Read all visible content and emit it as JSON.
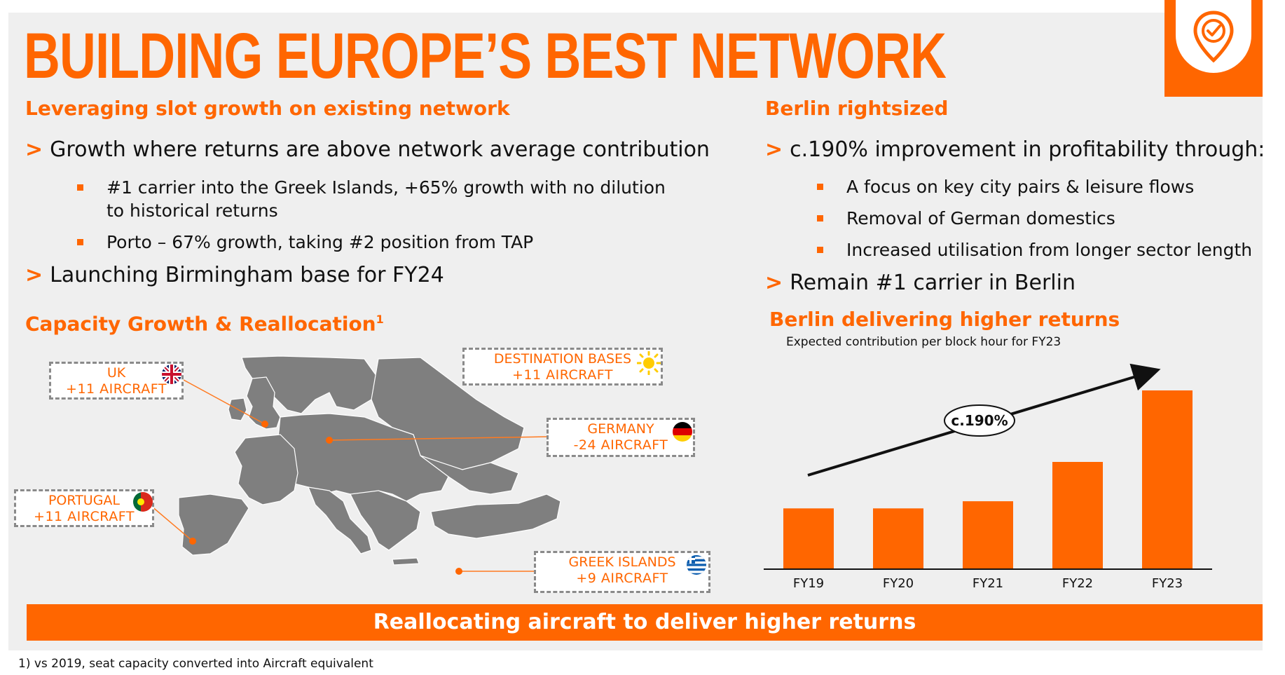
{
  "title": "BUILDING EUROPE’S BEST NETWORK",
  "left": {
    "heading": "Leveraging slot growth on existing network",
    "bullets": [
      "Growth where returns are above network average contribution",
      "Launching Birmingham base for FY24"
    ],
    "subbullets": [
      "#1 carrier into the Greek Islands, +65% growth with no dilution to historical returns",
      "Porto – 67% growth, taking #2 position from TAP"
    ]
  },
  "right": {
    "heading": "Berlin rightsized",
    "bullets": [
      "c.190% improvement in profitability through:",
      "Remain #1 carrier in Berlin"
    ],
    "subbullets": [
      "A focus on key city pairs & leisure flows",
      "Removal of German domestics",
      "Increased utilisation from longer sector length"
    ]
  },
  "map_section": {
    "heading": "Capacity Growth & Reallocation",
    "superscript": "1",
    "callouts": {
      "uk": {
        "label": "UK",
        "value": "+11 AIRCRAFT"
      },
      "destination": {
        "label": "DESTINATION BASES",
        "value": "+11 AIRCRAFT"
      },
      "germany": {
        "label": "GERMANY",
        "value": "-24 AIRCRAFT"
      },
      "portugal": {
        "label": "PORTUGAL",
        "value": "+11 AIRCRAFT"
      },
      "greek": {
        "label": "GREEK ISLANDS",
        "value": "+9 AIRCRAFT"
      }
    },
    "icons": [
      "uk-flag-icon",
      "sun-icon",
      "germany-flag-icon",
      "portugal-flag-icon",
      "greece-flag-icon"
    ]
  },
  "chart_section": {
    "heading": "Berlin delivering higher returns",
    "caption": "Expected contribution per block hour for FY23",
    "annotation": "c.190%"
  },
  "chart_data": {
    "type": "bar",
    "categories": [
      "FY19",
      "FY20",
      "FY21",
      "FY22",
      "FY23"
    ],
    "values": [
      34,
      34,
      38,
      60,
      100
    ],
    "title": "Berlin delivering higher returns",
    "subtitle": "Expected contribution per block hour for FY23",
    "xlabel": "",
    "ylabel": "",
    "ylim": [
      0,
      100
    ],
    "grid": false,
    "annotation": "c.190%",
    "color": "#ff6600"
  },
  "banner": "Reallocating aircraft to deliver higher returns",
  "footnote": "1) vs 2019, seat capacity converted into Aircraft equivalent",
  "colors": {
    "accent": "#ff6600",
    "map": "#7f7f7f",
    "panel": "#efefef"
  },
  "logo": "location-check-icon"
}
